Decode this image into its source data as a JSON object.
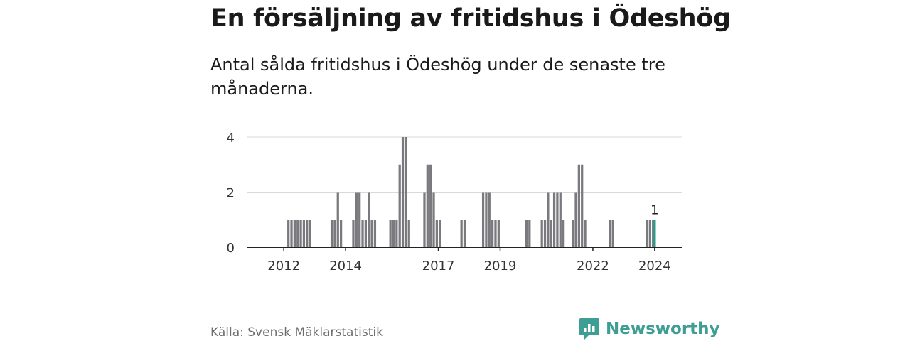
{
  "title": "En försäljning av fritidshus i Ödeshög",
  "subtitle": "Antal sålda fritidshus i Ödeshög under de senaste tre månaderna.",
  "source": "Källa: Svensk Mäklarstatistik",
  "brand": "Newsworthy",
  "colors": {
    "bar": "#7a7a7e",
    "highlight": "#2a9d8f",
    "grid": "#d9d9d9",
    "axis": "#222222",
    "brand": "#3f9e93"
  },
  "chart_data": {
    "type": "bar",
    "title": "En försäljning av fritidshus i Ödeshög",
    "xlabel": "",
    "ylabel": "",
    "ylim": [
      0,
      4
    ],
    "yticks": [
      0,
      2,
      4
    ],
    "xlim": [
      2010.75,
      2024.85
    ],
    "xticks": [
      {
        "value": 2011.95,
        "label": "2012"
      },
      {
        "value": 2013.95,
        "label": "2014"
      },
      {
        "value": 2016.95,
        "label": "2017"
      },
      {
        "value": 2018.95,
        "label": "2019"
      },
      {
        "value": 2021.95,
        "label": "2022"
      },
      {
        "value": 2023.95,
        "label": "2024"
      }
    ],
    "bar_width": 0.075,
    "bars": [
      {
        "x": 2012.1,
        "value": 1
      },
      {
        "x": 2012.2,
        "value": 1
      },
      {
        "x": 2012.3,
        "value": 1
      },
      {
        "x": 2012.4,
        "value": 1
      },
      {
        "x": 2012.5,
        "value": 1
      },
      {
        "x": 2012.6,
        "value": 1
      },
      {
        "x": 2012.7,
        "value": 1
      },
      {
        "x": 2012.8,
        "value": 1
      },
      {
        "x": 2013.5,
        "value": 1
      },
      {
        "x": 2013.6,
        "value": 1
      },
      {
        "x": 2013.7,
        "value": 2
      },
      {
        "x": 2013.8,
        "value": 1
      },
      {
        "x": 2014.2,
        "value": 1
      },
      {
        "x": 2014.3,
        "value": 2
      },
      {
        "x": 2014.4,
        "value": 2
      },
      {
        "x": 2014.5,
        "value": 1
      },
      {
        "x": 2014.6,
        "value": 1
      },
      {
        "x": 2014.7,
        "value": 2
      },
      {
        "x": 2014.8,
        "value": 1
      },
      {
        "x": 2014.9,
        "value": 1
      },
      {
        "x": 2015.4,
        "value": 1
      },
      {
        "x": 2015.5,
        "value": 1
      },
      {
        "x": 2015.6,
        "value": 1
      },
      {
        "x": 2015.7,
        "value": 3
      },
      {
        "x": 2015.8,
        "value": 4
      },
      {
        "x": 2015.9,
        "value": 4
      },
      {
        "x": 2016.0,
        "value": 1
      },
      {
        "x": 2016.5,
        "value": 2
      },
      {
        "x": 2016.6,
        "value": 3
      },
      {
        "x": 2016.7,
        "value": 3
      },
      {
        "x": 2016.8,
        "value": 2
      },
      {
        "x": 2016.9,
        "value": 1
      },
      {
        "x": 2017.0,
        "value": 1
      },
      {
        "x": 2017.7,
        "value": 1
      },
      {
        "x": 2017.8,
        "value": 1
      },
      {
        "x": 2018.4,
        "value": 2
      },
      {
        "x": 2018.5,
        "value": 2
      },
      {
        "x": 2018.6,
        "value": 2
      },
      {
        "x": 2018.7,
        "value": 1
      },
      {
        "x": 2018.8,
        "value": 1
      },
      {
        "x": 2018.9,
        "value": 1
      },
      {
        "x": 2019.8,
        "value": 1
      },
      {
        "x": 2019.9,
        "value": 1
      },
      {
        "x": 2020.3,
        "value": 1
      },
      {
        "x": 2020.4,
        "value": 1
      },
      {
        "x": 2020.5,
        "value": 2
      },
      {
        "x": 2020.6,
        "value": 1
      },
      {
        "x": 2020.7,
        "value": 2
      },
      {
        "x": 2020.8,
        "value": 2
      },
      {
        "x": 2020.9,
        "value": 2
      },
      {
        "x": 2021.0,
        "value": 1
      },
      {
        "x": 2021.3,
        "value": 1
      },
      {
        "x": 2021.4,
        "value": 2
      },
      {
        "x": 2021.5,
        "value": 3
      },
      {
        "x": 2021.6,
        "value": 3
      },
      {
        "x": 2021.7,
        "value": 1
      },
      {
        "x": 2022.5,
        "value": 1
      },
      {
        "x": 2022.6,
        "value": 1
      },
      {
        "x": 2023.7,
        "value": 1
      },
      {
        "x": 2023.8,
        "value": 1
      },
      {
        "x": 2023.9,
        "value": 1
      },
      {
        "x": 2023.95,
        "value": 1,
        "highlight": true,
        "label": "1"
      }
    ]
  }
}
